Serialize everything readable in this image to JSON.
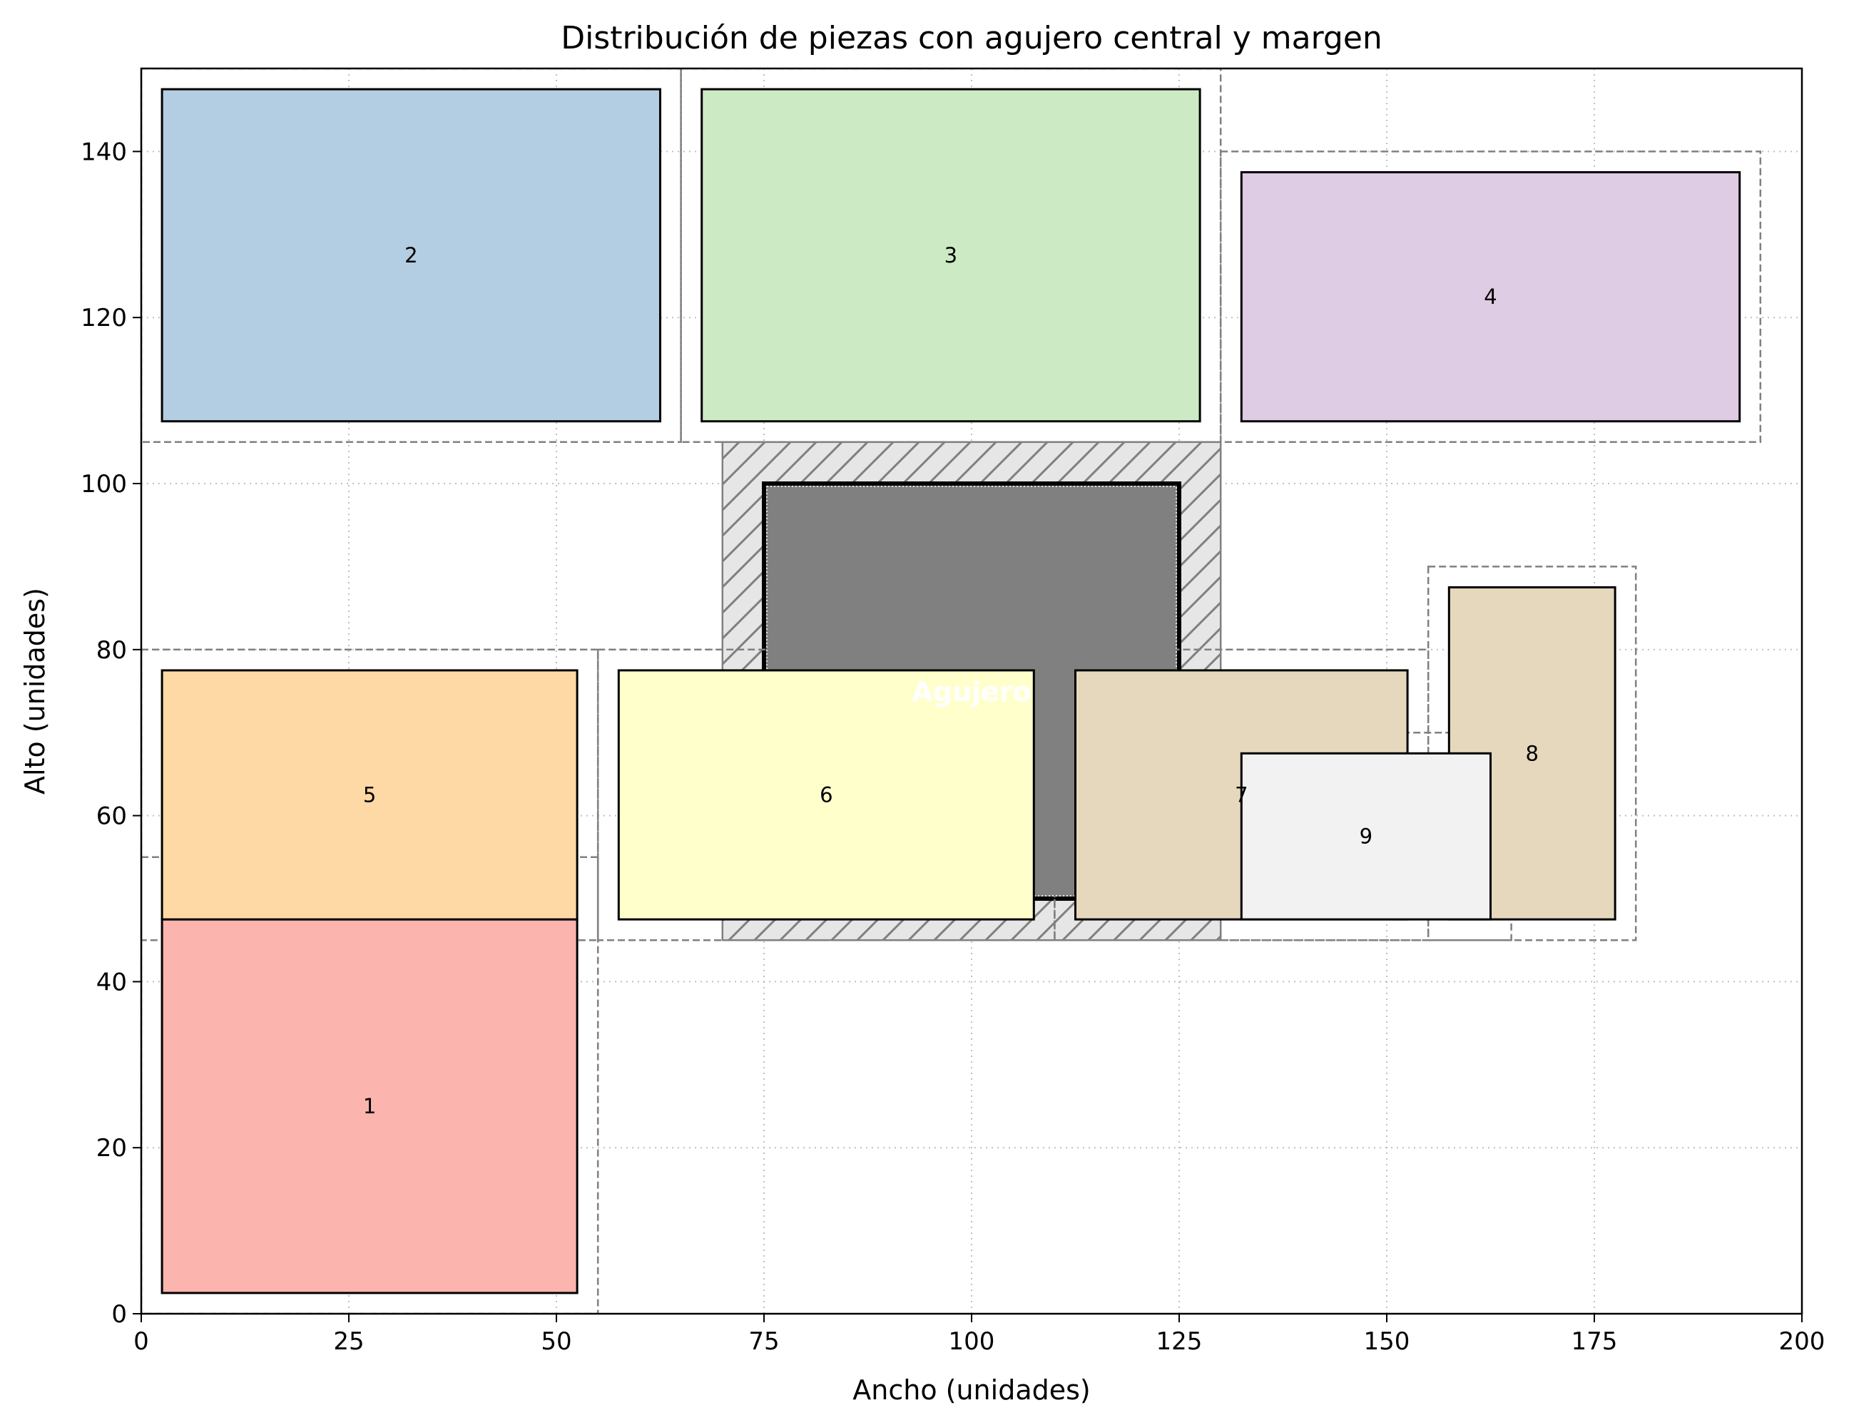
{
  "chart_data": {
    "type": "rectangles",
    "title": "Distribución de piezas con agujero central y margen",
    "xlabel": "Ancho (unidades)",
    "ylabel": "Alto (unidades)",
    "xlim": [
      0,
      200
    ],
    "ylim": [
      0,
      150
    ],
    "xticks": [
      0,
      25,
      50,
      75,
      100,
      125,
      150,
      175,
      200
    ],
    "yticks": [
      0,
      20,
      40,
      60,
      80,
      100,
      120,
      140
    ],
    "grid": true,
    "margin_color": "#808080",
    "hole": {
      "label": "Agujero",
      "x": 75,
      "y": 50,
      "width": 50,
      "height": 50,
      "color": "#808080",
      "hatched_zone": {
        "x": 70,
        "y": 45,
        "width": 60,
        "height": 60,
        "color": "#e6e6e6"
      }
    },
    "pieces": [
      {
        "label": "1",
        "x": 2.5,
        "y": 2.5,
        "width": 50,
        "height": 45,
        "color": "#fbb4ae",
        "margin": {
          "x": 0,
          "y": 0,
          "width": 55,
          "height": 55
        }
      },
      {
        "label": "2",
        "x": 2.5,
        "y": 107.5,
        "width": 60,
        "height": 40,
        "color": "#b3cde3",
        "margin": {
          "x": 0,
          "y": 105,
          "width": 65,
          "height": 45
        }
      },
      {
        "label": "3",
        "x": 67.5,
        "y": 107.5,
        "width": 60,
        "height": 40,
        "color": "#ccebc5",
        "margin": {
          "x": 65,
          "y": 105,
          "width": 65,
          "height": 45
        }
      },
      {
        "label": "4",
        "x": 132.5,
        "y": 107.5,
        "width": 60,
        "height": 30,
        "color": "#decbe4",
        "margin": {
          "x": 130,
          "y": 105,
          "width": 65,
          "height": 35
        }
      },
      {
        "label": "5",
        "x": 2.5,
        "y": 47.5,
        "width": 50,
        "height": 30,
        "color": "#fed9a6",
        "margin": {
          "x": 0,
          "y": 45,
          "width": 55,
          "height": 35
        }
      },
      {
        "label": "6",
        "x": 57.5,
        "y": 47.5,
        "width": 50,
        "height": 30,
        "color": "#ffffcc",
        "margin": {
          "x": 55,
          "y": 45,
          "width": 55,
          "height": 35
        }
      },
      {
        "label": "7",
        "x": 112.5,
        "y": 47.5,
        "width": 40,
        "height": 30,
        "color": "#e5d8bd",
        "margin": {
          "x": 110,
          "y": 45,
          "width": 45,
          "height": 35
        }
      },
      {
        "label": "8",
        "x": 157.5,
        "y": 47.5,
        "width": 20,
        "height": 40,
        "color": "#e5d8bd",
        "margin": {
          "x": 155,
          "y": 45,
          "width": 25,
          "height": 45
        }
      },
      {
        "label": "9",
        "x": 132.5,
        "y": 47.5,
        "width": 30,
        "height": 20,
        "color": "#f2f2f2",
        "margin": {
          "x": 130,
          "y": 45,
          "width": 35,
          "height": 25
        }
      }
    ]
  }
}
